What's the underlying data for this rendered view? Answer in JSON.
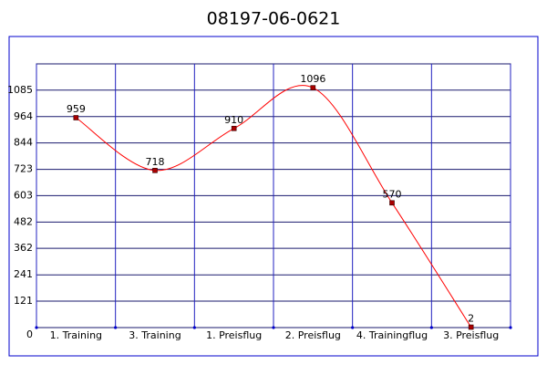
{
  "chart_data": {
    "type": "line",
    "title": "08197-06-0621",
    "categories": [
      "1. Training",
      "3. Training",
      "1. Preisflug",
      "2. Preisflug",
      "4. Trainingflug",
      "3. Preisflug"
    ],
    "series": [
      {
        "values": [
          959,
          718,
          910,
          1096,
          570,
          2
        ],
        "color": "#ff0000"
      }
    ],
    "ylim": [
      0,
      1205
    ],
    "yticks": [
      0,
      121,
      241,
      362,
      482,
      603,
      723,
      844,
      964,
      1085
    ],
    "grid": true
  }
}
